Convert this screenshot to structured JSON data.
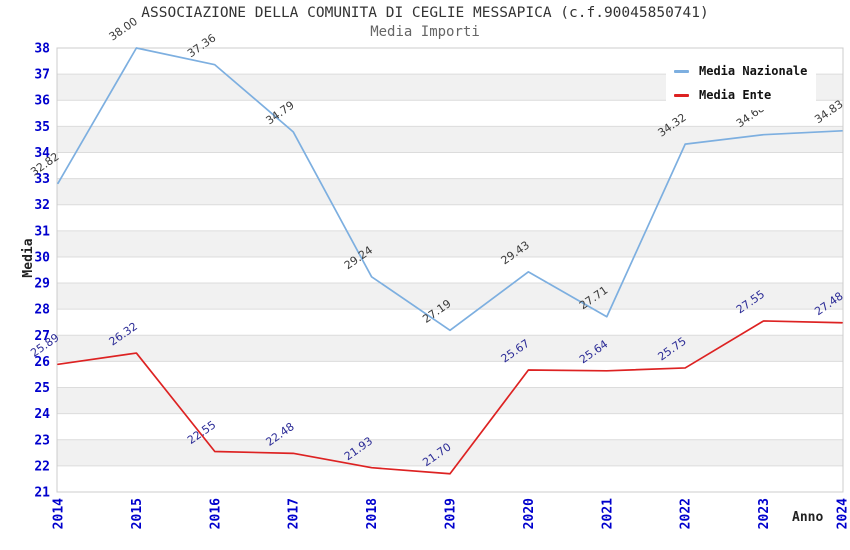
{
  "chart_data": {
    "type": "line",
    "title": "ASSOCIAZIONE DELLA COMUNITA DI CEGLIE MESSAPICA (c.f.90045850741)",
    "subtitle": "Media Importi",
    "xlabel": "Anno",
    "ylabel": "Media",
    "categories": [
      "2014",
      "2015",
      "2016",
      "2017",
      "2018",
      "2019",
      "2020",
      "2021",
      "2022",
      "2023",
      "2024"
    ],
    "ylim": [
      21,
      38
    ],
    "ytick_step": 1,
    "grid": true,
    "legend_position": "top-right",
    "axis_color": "#0000cd",
    "band_color": "#f1f1f1",
    "grid_color": "#dcdcdc",
    "border_color": "#cccccc",
    "series": [
      {
        "name": "Media Nazionale",
        "color": "#7dafe0",
        "label_color": "#3a3a3a",
        "values": [
          32.82,
          38.0,
          37.36,
          34.79,
          29.24,
          27.19,
          29.43,
          27.71,
          34.32,
          34.68,
          34.83
        ]
      },
      {
        "name": "Media Ente",
        "color": "#dd2222",
        "label_color": "#2b2b96",
        "values": [
          25.89,
          26.32,
          22.55,
          22.48,
          21.93,
          21.7,
          25.67,
          25.64,
          25.75,
          27.55,
          27.48
        ]
      }
    ]
  }
}
